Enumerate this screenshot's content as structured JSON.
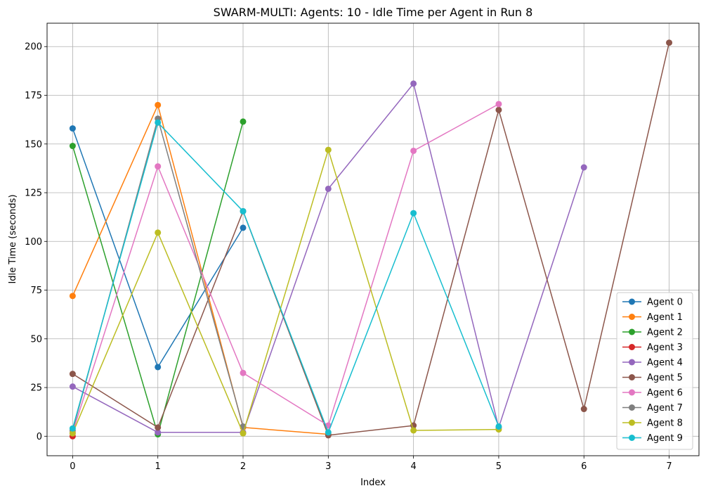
{
  "chart_data": {
    "type": "line",
    "title": "SWARM-MULTI: Agents: 10 - Idle Time per Agent in Run 8",
    "xlabel": "Index",
    "ylabel": "Idle Time (seconds)",
    "xlim": [
      -0.3,
      7.35
    ],
    "ylim": [
      -10,
      212
    ],
    "xticks": [
      0,
      1,
      2,
      3,
      4,
      5,
      6,
      7
    ],
    "yticks": [
      0,
      25,
      50,
      75,
      100,
      125,
      150,
      175,
      200
    ],
    "grid": true,
    "legend_position": "lower-right",
    "series": [
      {
        "name": "Agent 0",
        "color": "#1f77b4",
        "x": [
          0,
          1,
          2
        ],
        "values": [
          158,
          35.5,
          107
        ]
      },
      {
        "name": "Agent 1",
        "color": "#ff7f0e",
        "x": [
          0,
          1,
          2,
          3
        ],
        "values": [
          72,
          170,
          4.5,
          1
        ]
      },
      {
        "name": "Agent 2",
        "color": "#2ca02c",
        "x": [
          0,
          1,
          2
        ],
        "values": [
          149,
          1,
          161.5
        ]
      },
      {
        "name": "Agent 3",
        "color": "#d62728",
        "x": [
          0
        ],
        "values": [
          0
        ]
      },
      {
        "name": "Agent 4",
        "color": "#9467bd",
        "x": [
          0,
          1,
          2,
          3,
          4,
          5,
          6
        ],
        "values": [
          25.5,
          2,
          2,
          127,
          181,
          4.5,
          138
        ]
      },
      {
        "name": "Agent 5",
        "color": "#8c564b",
        "x": [
          0,
          1,
          2,
          3,
          4,
          5,
          6,
          7
        ],
        "values": [
          32,
          4.5,
          115.5,
          0.5,
          5.5,
          167.5,
          14,
          202
        ]
      },
      {
        "name": "Agent 6",
        "color": "#e377c2",
        "x": [
          0,
          1,
          2,
          3,
          4,
          5
        ],
        "values": [
          2,
          138.5,
          32.5,
          5.5,
          146.5,
          170.5
        ]
      },
      {
        "name": "Agent 7",
        "color": "#7f7f7f",
        "x": [
          0,
          1,
          2
        ],
        "values": [
          3,
          163,
          5
        ]
      },
      {
        "name": "Agent 8",
        "color": "#bcbd22",
        "x": [
          0,
          1,
          2,
          3,
          4,
          5
        ],
        "values": [
          1.5,
          104.5,
          1.5,
          147,
          3,
          3.5
        ]
      },
      {
        "name": "Agent 9",
        "color": "#17becf",
        "x": [
          0,
          1,
          2,
          3,
          4,
          5
        ],
        "values": [
          4,
          161,
          115.5,
          2,
          114.5,
          5
        ]
      }
    ]
  }
}
